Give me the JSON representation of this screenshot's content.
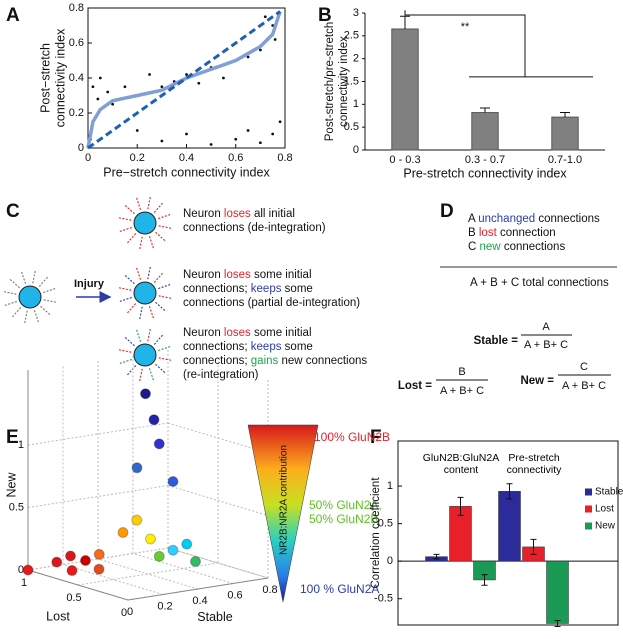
{
  "chart_data": [
    {
      "type": "scatter",
      "label": "A",
      "x_label": "Pre−stretch connectivity index",
      "y_label": [
        "Post−stretch",
        "connectivity index"
      ],
      "xlim": [
        0,
        0.8
      ],
      "ylim": [
        0,
        0.8
      ],
      "xticks": [
        0,
        0.2,
        0.4,
        0.6,
        0.8
      ],
      "yticks": [
        0,
        0.2,
        0.4,
        0.6,
        0.8
      ],
      "series": [
        {
          "type": "scatter",
          "color": "#111111",
          "x": [
            0.01,
            0.02,
            0.05,
            0.04,
            0.08,
            0.1,
            0.15,
            0.2,
            0.25,
            0.3,
            0.35,
            0.4,
            0.45,
            0.5,
            0.55,
            0.6,
            0.65,
            0.7,
            0.72,
            0.75,
            0.76,
            0.6,
            0.65,
            0.7,
            0.75,
            0.5,
            0.4,
            0.3,
            0.78,
            0.2
          ],
          "y": [
            0.05,
            0.35,
            0.4,
            0.28,
            0.32,
            0.25,
            0.35,
            0.3,
            0.42,
            0.35,
            0.38,
            0.42,
            0.37,
            0.46,
            0.4,
            0.5,
            0.52,
            0.56,
            0.75,
            0.7,
            0.62,
            0.05,
            0.1,
            0.03,
            0.08,
            0.02,
            0.08,
            0.04,
            0.15,
            0.1
          ]
        },
        {
          "type": "line",
          "color": "#7f9fd6",
          "x": [
            0,
            0.02,
            0.05,
            0.1,
            0.2,
            0.3,
            0.4,
            0.5,
            0.6,
            0.7,
            0.75,
            0.78
          ],
          "y": [
            0,
            0.15,
            0.22,
            0.27,
            0.3,
            0.33,
            0.4,
            0.45,
            0.5,
            0.58,
            0.65,
            0.78
          ]
        },
        {
          "type": "line",
          "color": "#1f5fb4",
          "dashed": true,
          "x": [
            0,
            0.78
          ],
          "y": [
            0,
            0.78
          ]
        }
      ]
    },
    {
      "type": "bar",
      "label": "B",
      "categories": [
        "0 - 0.3",
        "0.3 - 0.7",
        "0.7-1.0"
      ],
      "values": [
        2.65,
        0.82,
        0.72
      ],
      "errors": [
        0.28,
        0.1,
        0.1
      ],
      "color": "#808080",
      "ylim": [
        0,
        3
      ],
      "yticks": [
        0,
        0.5,
        1,
        1.5,
        2,
        2.5,
        3
      ],
      "x_label": "Pre-stretch connectivity index",
      "y_label": [
        "Post-stretch/pre-stretch",
        "connectivity index"
      ],
      "annotation": "**"
    },
    {
      "type": "scatter3d",
      "label": "E",
      "x_label": "Stable",
      "y_label": "Lost",
      "z_label": "New",
      "xlim": [
        0,
        0.8
      ],
      "ylim": [
        0,
        1
      ],
      "zlim": [
        0,
        1.6
      ],
      "xticks": [
        0,
        0.2,
        0.4,
        0.6,
        0.8
      ],
      "yticks": [
        0,
        0.5,
        1
      ],
      "zticks": [
        0,
        0.5,
        1
      ],
      "x": [
        0.0,
        0.05,
        0.08,
        0.1,
        0.12,
        0.15,
        0.1,
        0.2,
        0.25,
        0.3,
        0.35,
        0.4,
        0.45,
        0.5,
        0.3,
        0.32,
        0.35,
        0.4,
        0.28
      ],
      "y": [
        1.0,
        0.8,
        0.7,
        0.6,
        0.5,
        0.55,
        0.75,
        0.4,
        0.35,
        0.3,
        0.3,
        0.25,
        0.2,
        0.2,
        0.35,
        0.3,
        0.3,
        0.25,
        0.4
      ],
      "z": [
        0.0,
        0.1,
        0.05,
        0.15,
        0.1,
        0.2,
        0.15,
        0.4,
        0.5,
        0.35,
        0.2,
        0.25,
        0.3,
        0.15,
        1.5,
        1.3,
        1.1,
        0.8,
        0.9
      ],
      "colors": [
        "#e41a1c",
        "#d7191c",
        "#e41a1c",
        "#cc0000",
        "#e34a1c",
        "#f46d1c",
        "#d7191c",
        "#ff9900",
        "#ffcc00",
        "#ffee00",
        "#66cc33",
        "#33ccff",
        "#00ccee",
        "#33bb66",
        "#1a1a8c",
        "#2222aa",
        "#3333cc",
        "#2e5bd6",
        "#3366cc"
      ],
      "colorbar": {
        "title": "NR2B:NR2A contribution",
        "top": "100% GluN2B",
        "middle": [
          "50% GluN2A,",
          "50% GluN2B"
        ],
        "bottom": "100 % GluN2A"
      }
    },
    {
      "type": "grouped_bar",
      "label": "F",
      "categories": [
        "GluN2B:GluN2A content",
        "Pre-stretch connectivity"
      ],
      "series": [
        {
          "name": "Stable",
          "color": "#2b2b9a",
          "values": [
            0.06,
            0.93
          ],
          "errors": [
            0.03,
            0.1
          ]
        },
        {
          "name": "Lost",
          "color": "#e8202a",
          "values": [
            0.73,
            0.19
          ],
          "errors": [
            0.12,
            0.1
          ]
        },
        {
          "name": "New",
          "color": "#1a9a55",
          "values": [
            -0.25,
            -0.83
          ],
          "errors": [
            0.07,
            0.04
          ]
        }
      ],
      "ylim": [
        -0.85,
        1.6
      ],
      "yticks": [
        -0.5,
        0,
        0.5,
        1
      ],
      "y_label": "Correlation coefficient",
      "legend": "right"
    }
  ],
  "panel_c": {
    "label": "C",
    "injury": "Injury",
    "outcomes": [
      [
        "Neuron",
        "loses",
        "all initial connections (de-integration)"
      ],
      [
        "Neuron",
        "loses",
        "some initial connections;",
        "keeps",
        "some connections (partial de-integration)"
      ],
      [
        "Neuron",
        "loses",
        "some initial connections;",
        "keeps",
        "some connections;",
        "gains",
        "new connections (re-integration)"
      ]
    ]
  },
  "panel_d": {
    "label": "D",
    "lines": [
      [
        "A",
        "unchanged",
        "connections"
      ],
      [
        "B",
        "lost",
        "connection"
      ],
      [
        "C",
        "new",
        "connections"
      ]
    ],
    "total": "A + B + C total connections",
    "equations": [
      {
        "name": "Stable =",
        "num": "A",
        "den": "A + B+ C"
      },
      {
        "name": "Lost =",
        "num": "B",
        "den": "A + B+ C"
      },
      {
        "name": "New =",
        "num": "C",
        "den": "A + B+ C"
      }
    ]
  }
}
